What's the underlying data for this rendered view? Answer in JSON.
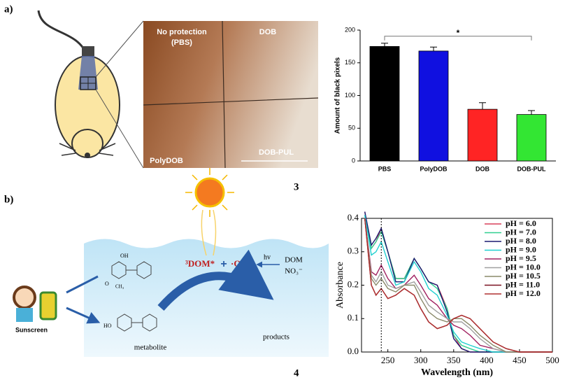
{
  "panel_labels": {
    "a": "a)",
    "b": "b)",
    "figure_3": "3",
    "figure_4": "4"
  },
  "photo": {
    "top_left": "No protection",
    "top_left_sub": "(PBS)",
    "top_right": "DOB",
    "bottom_left": "PolyDOB",
    "bottom_right": "DOB-PUL"
  },
  "diagram": {
    "dom_excited": "³DOM*",
    "hydroxyl": "·OH",
    "light": "hv",
    "dom": "DOM",
    "nitrate": "NO₃⁻",
    "products": "products",
    "metabolite": "metabolite",
    "sunscreen": "Sunscreen",
    "oh_group": "OH",
    "o_group": "O",
    "methyl": "CH₃",
    "ho_group": "HO"
  },
  "chart_data": [
    {
      "type": "bar",
      "ylabel": "Amount of black pixels",
      "annotation": "*",
      "categories": [
        "PBS",
        "PolyDOB",
        "DOB",
        "DOB-PUL"
      ],
      "values": [
        175,
        168,
        79,
        71
      ],
      "errors": [
        5,
        6,
        10,
        6
      ],
      "colors": [
        "#000000",
        "#1010e0",
        "#ff2424",
        "#33e633"
      ],
      "ylim": [
        0,
        200
      ],
      "yticks": [
        0,
        50,
        100,
        150,
        200
      ]
    },
    {
      "type": "line",
      "xlabel": "Wavelength (nm)",
      "ylabel": "Absorbance",
      "x": [
        215,
        225,
        232,
        240,
        250,
        262,
        275,
        290,
        300,
        312,
        325,
        340,
        350,
        362,
        375,
        390,
        410,
        430,
        450,
        500
      ],
      "vline": 240,
      "xlim": [
        210,
        500
      ],
      "xticks": [
        250,
        300,
        350,
        400,
        450,
        500
      ],
      "ylim": [
        0,
        0.4
      ],
      "yticks": [
        {
          "value": 0,
          "label": "0.0"
        },
        0.1,
        0.2,
        0.3,
        0.4
      ],
      "legend": "upper right",
      "series": [
        {
          "name": "pH = 6.0",
          "color": "#d8405a",
          "values": [
            0.42,
            0.31,
            0.33,
            0.37,
            0.3,
            0.22,
            0.22,
            0.28,
            0.25,
            0.21,
            0.2,
            0.13,
            0.05,
            0.01,
            0,
            0,
            0,
            0,
            0,
            0
          ]
        },
        {
          "name": "pH = 7.0",
          "color": "#30d090",
          "values": [
            0.41,
            0.31,
            0.33,
            0.36,
            0.3,
            0.22,
            0.22,
            0.28,
            0.25,
            0.21,
            0.19,
            0.13,
            0.05,
            0.02,
            0.01,
            0,
            0,
            0,
            0,
            0
          ]
        },
        {
          "name": "pH = 8.0",
          "color": "#1a1a70",
          "values": [
            0.42,
            0.32,
            0.34,
            0.37,
            0.3,
            0.21,
            0.21,
            0.28,
            0.25,
            0.21,
            0.2,
            0.12,
            0.04,
            0.01,
            0,
            0,
            0,
            0,
            0,
            0
          ]
        },
        {
          "name": "pH = 9.0",
          "color": "#20d0d0",
          "values": [
            0.41,
            0.29,
            0.3,
            0.33,
            0.27,
            0.2,
            0.21,
            0.27,
            0.24,
            0.19,
            0.17,
            0.11,
            0.06,
            0.03,
            0.02,
            0.01,
            0,
            0,
            0,
            0
          ]
        },
        {
          "name": "pH = 9.5",
          "color": "#a02060",
          "values": [
            0.4,
            0.24,
            0.23,
            0.26,
            0.22,
            0.19,
            0.2,
            0.23,
            0.2,
            0.16,
            0.14,
            0.1,
            0.08,
            0.07,
            0.05,
            0.02,
            0.01,
            0,
            0,
            0
          ]
        },
        {
          "name": "pH = 10.0",
          "color": "#a0a0a0",
          "values": [
            0.4,
            0.23,
            0.21,
            0.24,
            0.2,
            0.19,
            0.2,
            0.21,
            0.18,
            0.14,
            0.12,
            0.1,
            0.09,
            0.09,
            0.07,
            0.04,
            0.01,
            0,
            0,
            0
          ]
        },
        {
          "name": "pH = 10.5",
          "color": "#8a8a6a",
          "values": [
            0.4,
            0.22,
            0.2,
            0.22,
            0.19,
            0.18,
            0.2,
            0.2,
            0.16,
            0.12,
            0.1,
            0.09,
            0.1,
            0.1,
            0.08,
            0.05,
            0.02,
            0,
            0,
            0
          ]
        },
        {
          "name": "pH = 11.0",
          "color": "#7a1020",
          "values": [
            0.4,
            0.2,
            0.17,
            0.19,
            0.16,
            0.17,
            0.19,
            0.17,
            0.13,
            0.09,
            0.07,
            0.08,
            0.1,
            0.11,
            0.1,
            0.07,
            0.03,
            0.01,
            0,
            0
          ]
        },
        {
          "name": "pH = 12.0",
          "color": "#b03030",
          "values": [
            0.4,
            0.2,
            0.17,
            0.19,
            0.16,
            0.17,
            0.19,
            0.17,
            0.13,
            0.09,
            0.07,
            0.08,
            0.1,
            0.11,
            0.1,
            0.07,
            0.03,
            0.01,
            0,
            0
          ]
        }
      ]
    }
  ]
}
